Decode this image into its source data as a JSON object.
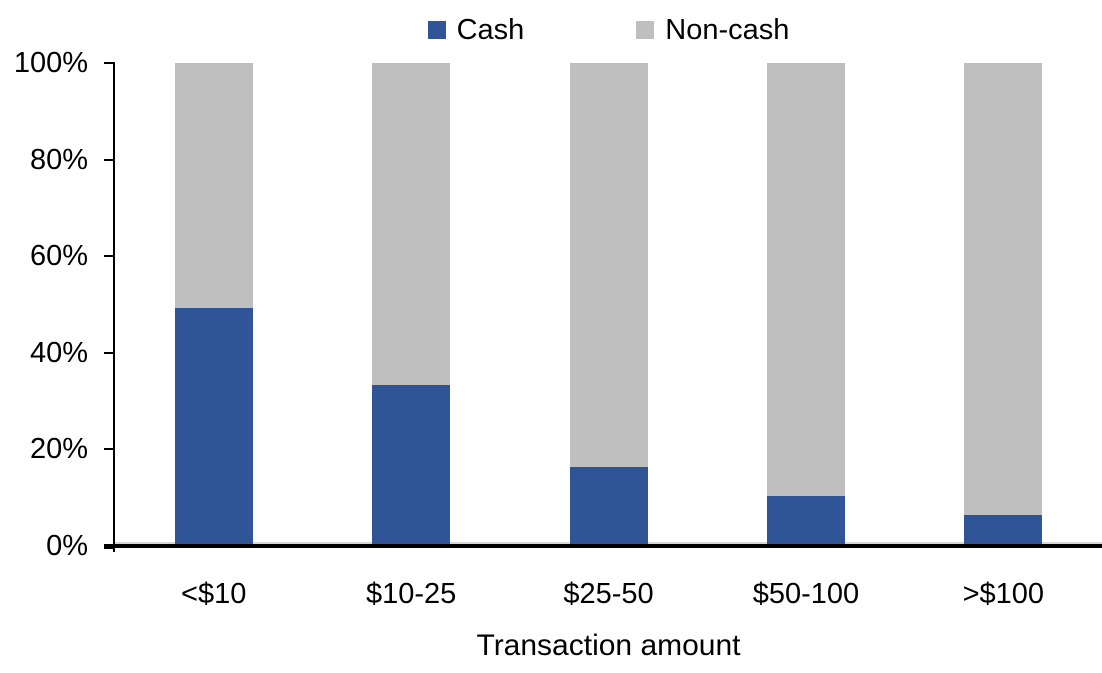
{
  "chart_data": {
    "type": "bar",
    "stacked": true,
    "orientation": "vertical",
    "title": "",
    "xlabel": "Transaction amount",
    "ylabel": "",
    "categories": [
      "<$10",
      "$10-25",
      "$25-50",
      "$50-100",
      ">$100"
    ],
    "series": [
      {
        "name": "Cash",
        "color": "#2F5597",
        "values": [
          49,
          33,
          16,
          10,
          6
        ]
      },
      {
        "name": "Non-cash",
        "color": "#BFBFBF",
        "values": [
          51,
          67,
          84,
          90,
          94
        ]
      }
    ],
    "ylim": [
      0,
      100
    ],
    "ytick_labels": [
      "0%",
      "20%",
      "40%",
      "60%",
      "80%",
      "100%"
    ],
    "ytick_values": [
      0,
      20,
      40,
      60,
      80,
      100
    ],
    "legend_position": "top",
    "grid": false,
    "axis_color": "#000000",
    "background_color": "#FFFFFF"
  }
}
